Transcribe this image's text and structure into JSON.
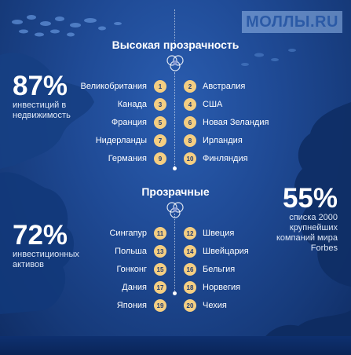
{
  "watermark": "МОЛЛЫ.RU",
  "stats": {
    "left_top": {
      "value": "87%",
      "desc_line1": "инвестиций в",
      "desc_line2": "недвижимость"
    },
    "left_bottom": {
      "value": "72%",
      "desc_line1": "инвестиционных",
      "desc_line2": "активов"
    },
    "right": {
      "value": "55%",
      "desc_line1": "списка 2000",
      "desc_line2": "крупнейших",
      "desc_line3": "компаний мира",
      "desc_line4": "Forbes"
    }
  },
  "sections": [
    {
      "title": "Высокая прозрачность",
      "rows": [
        {
          "left_num": "1",
          "left_name": "Великобритания",
          "right_num": "2",
          "right_name": "Австралия"
        },
        {
          "left_num": "3",
          "left_name": "Канада",
          "right_num": "4",
          "right_name": "США"
        },
        {
          "left_num": "5",
          "left_name": "Франция",
          "right_num": "6",
          "right_name": "Новая Зеландия"
        },
        {
          "left_num": "7",
          "left_name": "Нидерланды",
          "right_num": "8",
          "right_name": "Ирландия"
        },
        {
          "left_num": "9",
          "left_name": "Германия",
          "right_num": "10",
          "right_name": "Финляндия"
        }
      ]
    },
    {
      "title": "Прозрачные",
      "rows": [
        {
          "left_num": "11",
          "left_name": "Сингапур",
          "right_num": "12",
          "right_name": "Швеция"
        },
        {
          "left_num": "13",
          "left_name": "Польша",
          "right_num": "14",
          "right_name": "Швейцария"
        },
        {
          "left_num": "15",
          "left_name": "Гонконг",
          "right_num": "16",
          "right_name": "Бельгия"
        },
        {
          "left_num": "17",
          "left_name": "Дания",
          "right_num": "18",
          "right_name": "Норвегия"
        },
        {
          "left_num": "19",
          "left_name": "Япония",
          "right_num": "20",
          "right_name": "Чехия"
        }
      ]
    }
  ],
  "colors": {
    "badge": "#f4ce82",
    "background": "#1f4a95",
    "coral": "#0f2e66"
  }
}
